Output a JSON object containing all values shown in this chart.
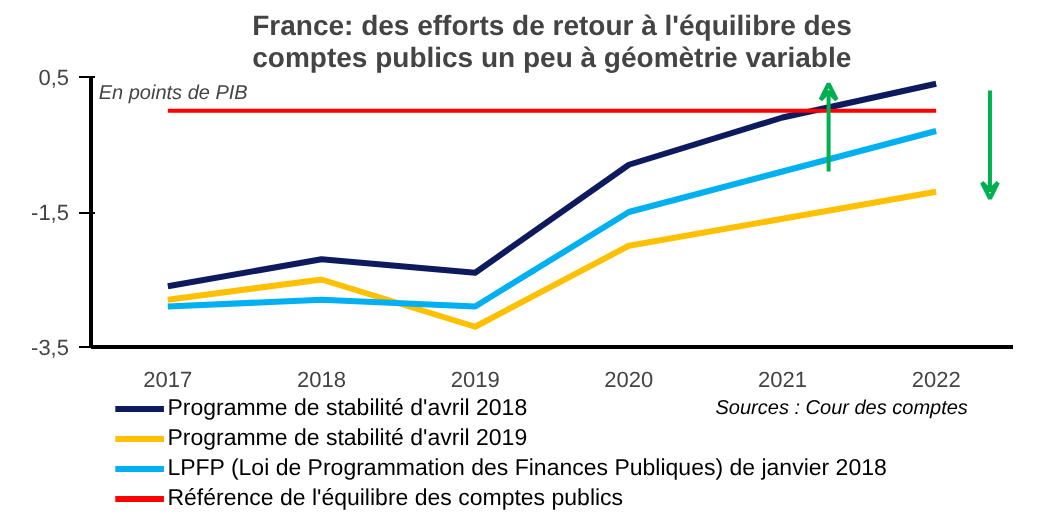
{
  "chart_data": {
    "type": "line",
    "title": "France: des efforts de retour à l'équilibre des\ncomptes publics un peu à géomètrie variable",
    "categories": [
      "2017",
      "2018",
      "2019",
      "2020",
      "2021",
      "2022"
    ],
    "series": [
      {
        "name": "Programme de stabilité d'avril 2018",
        "color": "#0d1a5e",
        "values": [
          -2.6,
          -2.2,
          -2.4,
          -0.8,
          -0.1,
          0.4
        ]
      },
      {
        "name": "Programme de stabilité d'avril 2019",
        "color": "#ffc000",
        "values": [
          -2.8,
          -2.5,
          -3.2,
          -2.0,
          -1.6,
          -1.2
        ]
      },
      {
        "name": "LPFP (Loi de Programmation des  Finances Publiques) de janvier 2018",
        "color": "#00b0f0",
        "values": [
          -2.9,
          -2.8,
          -2.9,
          -1.5,
          -0.9,
          -0.3
        ]
      }
    ],
    "ref_lines": [
      {
        "axis": "y",
        "value": 0,
        "label": "Référence de l'équilibre des comptes publics",
        "color": "#ff0000"
      }
    ],
    "ylim": [
      -3.5,
      0.5
    ],
    "yticks": [
      {
        "value": -3.5,
        "label": "-3,5"
      },
      {
        "value": -1.5,
        "label": "-1,5"
      },
      {
        "value": 0.5,
        "label": "0,5"
      }
    ],
    "annotations": [
      "En points de PIB",
      "Sources : Cour des comptes"
    ],
    "grid": false,
    "legend": "bottom",
    "marker": "none",
    "line_style": "solid"
  }
}
